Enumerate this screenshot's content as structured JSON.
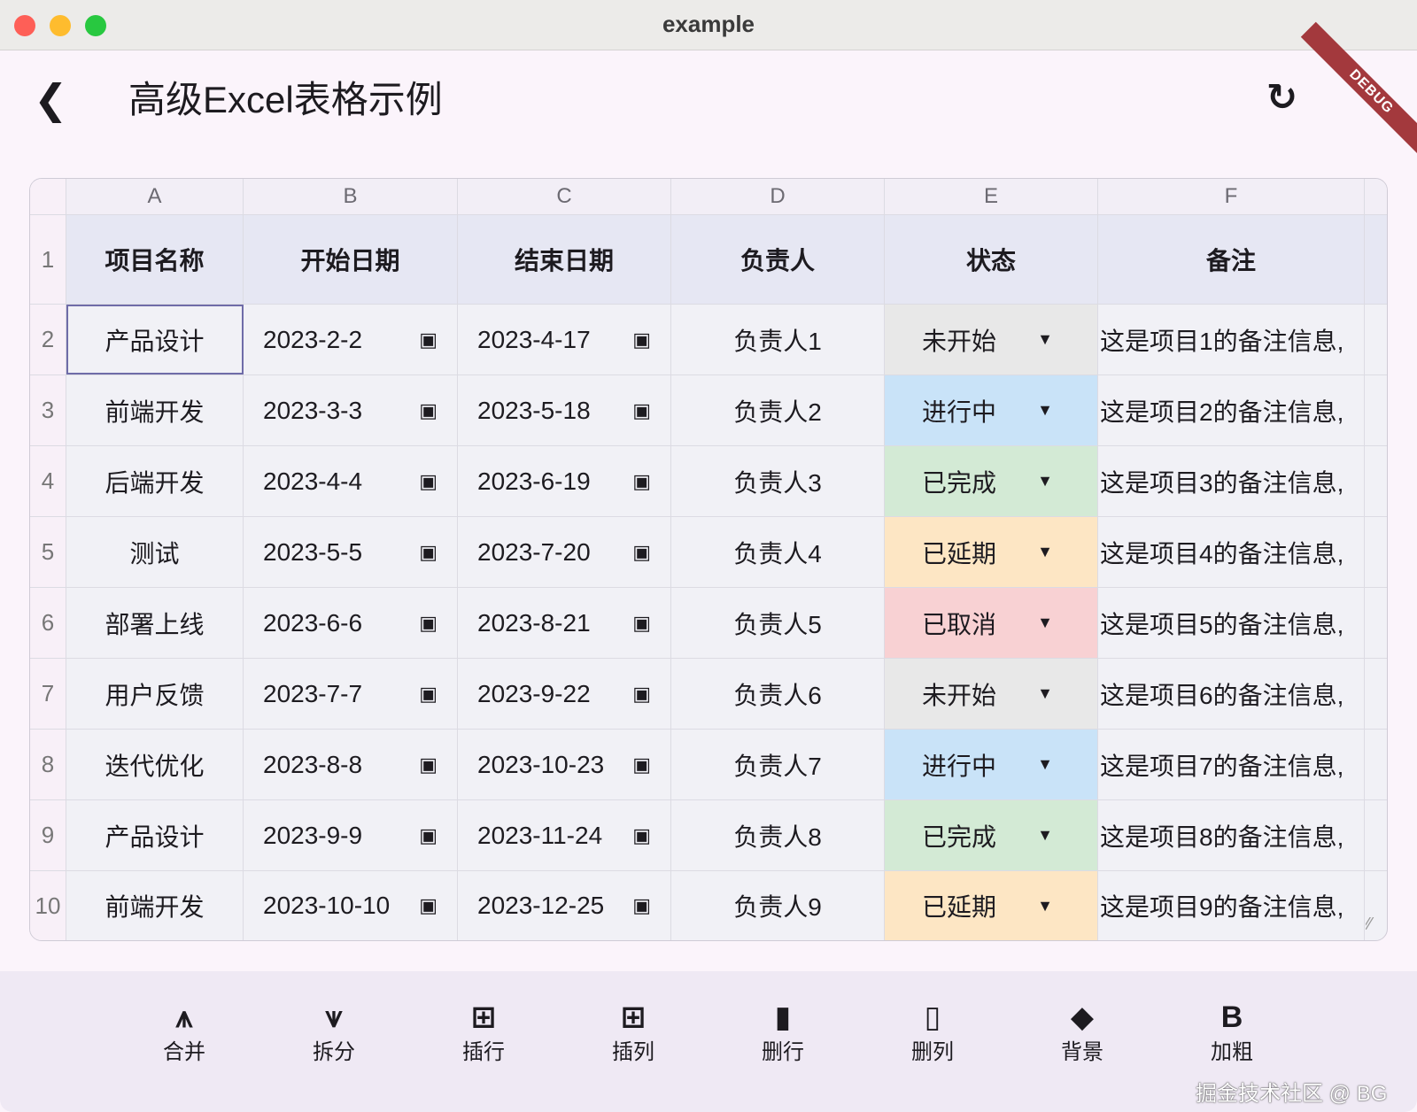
{
  "window": {
    "title": "example",
    "lights": [
      "#fe5f57",
      "#febc2e",
      "#28c840"
    ]
  },
  "appbar": {
    "title": "高级Excel表格示例",
    "back_icon": "chevron-left-icon",
    "refresh_icon": "refresh-icon",
    "debug_banner": "DEBUG"
  },
  "grid": {
    "columns": [
      "A",
      "B",
      "C",
      "D",
      "E",
      "F"
    ],
    "headers": [
      "项目名称",
      "开始日期",
      "结束日期",
      "负责人",
      "状态",
      "备注"
    ],
    "rows": [
      {
        "n": "2",
        "name": "产品设计",
        "start": "2023-2-2",
        "end": "2023-4-17",
        "owner": "负责人1",
        "status": "未开始",
        "note": "这是项目1的备注信息,"
      },
      {
        "n": "3",
        "name": "前端开发",
        "start": "2023-3-3",
        "end": "2023-5-18",
        "owner": "负责人2",
        "status": "进行中",
        "note": "这是项目2的备注信息,"
      },
      {
        "n": "4",
        "name": "后端开发",
        "start": "2023-4-4",
        "end": "2023-6-19",
        "owner": "负责人3",
        "status": "已完成",
        "note": "这是项目3的备注信息,"
      },
      {
        "n": "5",
        "name": "测试",
        "start": "2023-5-5",
        "end": "2023-7-20",
        "owner": "负责人4",
        "status": "已延期",
        "note": "这是项目4的备注信息,"
      },
      {
        "n": "6",
        "name": "部署上线",
        "start": "2023-6-6",
        "end": "2023-8-21",
        "owner": "负责人5",
        "status": "已取消",
        "note": "这是项目5的备注信息,"
      },
      {
        "n": "7",
        "name": "用户反馈",
        "start": "2023-7-7",
        "end": "2023-9-22",
        "owner": "负责人6",
        "status": "未开始",
        "note": "这是项目6的备注信息,"
      },
      {
        "n": "8",
        "name": "迭代优化",
        "start": "2023-8-8",
        "end": "2023-10-23",
        "owner": "负责人7",
        "status": "进行中",
        "note": "这是项目7的备注信息,"
      },
      {
        "n": "9",
        "name": "产品设计",
        "start": "2023-9-9",
        "end": "2023-11-24",
        "owner": "负责人8",
        "status": "已完成",
        "note": "这是项目8的备注信息,"
      },
      {
        "n": "10",
        "name": "前端开发",
        "start": "2023-10-10",
        "end": "2023-12-25",
        "owner": "负责人9",
        "status": "已延期",
        "note": "这是项目9的备注信息,"
      }
    ],
    "header_row_number": "1",
    "status_colors": {
      "未开始": "#e8e8e8",
      "进行中": "#c9e3f8",
      "已完成": "#d3ead5",
      "已延期": "#fde6c4",
      "已取消": "#f8d1d3"
    },
    "selected_cell": "A2"
  },
  "toolbar": [
    {
      "label": "合并",
      "icon": "merge-icon"
    },
    {
      "label": "拆分",
      "icon": "split-icon"
    },
    {
      "label": "插行",
      "icon": "add-row-icon"
    },
    {
      "label": "插列",
      "icon": "add-column-icon"
    },
    {
      "label": "删行",
      "icon": "delete-row-icon"
    },
    {
      "label": "删列",
      "icon": "delete-column-icon"
    },
    {
      "label": "背景",
      "icon": "format-color-fill-icon"
    },
    {
      "label": "加粗",
      "icon": "bold-icon"
    }
  ],
  "watermark": "掘金技术社区 @ BG"
}
